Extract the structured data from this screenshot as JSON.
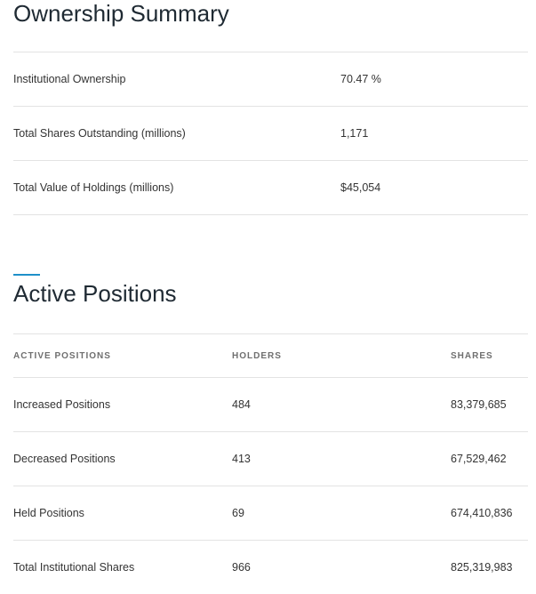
{
  "ownership_summary": {
    "title": "Ownership Summary",
    "rows": [
      {
        "label": "Institutional Ownership",
        "value": "70.47 %"
      },
      {
        "label": "Total Shares Outstanding (millions)",
        "value": "1,171"
      },
      {
        "label": "Total Value of Holdings (millions)",
        "value": "$45,054"
      }
    ]
  },
  "active_positions": {
    "title": "Active Positions",
    "accent_color": "#1e90c9",
    "headers": [
      "ACTIVE POSITIONS",
      "HOLDERS",
      "SHARES"
    ],
    "rows": [
      {
        "label": "Increased Positions",
        "holders": "484",
        "shares": "83,379,685"
      },
      {
        "label": "Decreased Positions",
        "holders": "413",
        "shares": "67,529,462"
      },
      {
        "label": "Held Positions",
        "holders": "69",
        "shares": "674,410,836"
      },
      {
        "label": "Total Institutional Shares",
        "holders": "966",
        "shares": "825,319,983"
      }
    ]
  }
}
